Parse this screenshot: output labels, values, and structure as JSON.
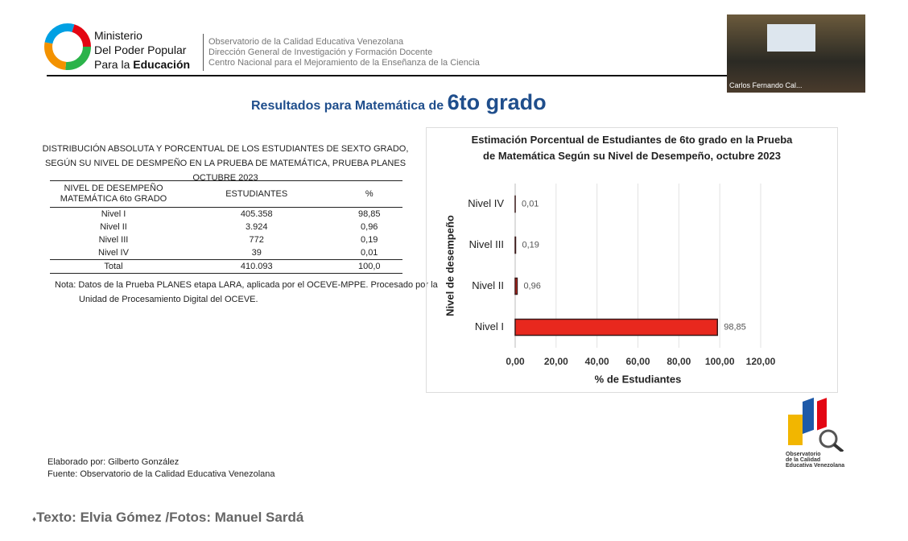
{
  "header": {
    "ministry": [
      "Ministerio",
      "Del Poder Popular",
      "Para la "
    ],
    "ministry_bold": "Educación",
    "observatory": [
      "Observatorio de la Calidad Educativa Venezolana",
      "Dirección General de Investigación y Formación Docente",
      "Centro Nacional para el Mejoramiento de la Enseñanza de la Ciencia"
    ],
    "video_caption": "Carlos Fernando Cal..."
  },
  "slide_title": {
    "text": "Resultados para Matemática de",
    "emphasis": "6to grado"
  },
  "table": {
    "title": "DISTRIBUCIÓN ABSOLUTA Y PORCENTUAL DE LOS ESTUDIANTES DE SEXTO GRADO, SEGÚN SU NIVEL DE DESMPEÑO EN LA PRUEBA DE MATEMÁTICA, PRUEBA PLANES OCTUBRE 2023",
    "header": [
      "NIVEL DE DESEMPEÑO MATEMÁTICA 6to GRADO",
      "ESTUDIANTES",
      "%"
    ],
    "rows": [
      [
        "Nivel I",
        "405.358",
        "98,85"
      ],
      [
        "Nivel II",
        "3.924",
        "0,96"
      ],
      [
        "Nivel III",
        "772",
        "0,19"
      ],
      [
        "Nivel IV",
        "39",
        "0,01"
      ],
      [
        "Total",
        "410.093",
        "100,0"
      ]
    ],
    "note": "Nota: Datos de la Prueba PLANES etapa LARA, aplicada por el OCEVE-MPPE. Procesado por la Unidad de Procesamiento Digital del OCEVE."
  },
  "chart_data": {
    "type": "hbar",
    "title": "Estimación Porcentual de Estudiantes de 6to grado en la Prueba de Matemática Según su Nivel de Desempeño, octubre 2023",
    "xlabel": "% de Estudiantes",
    "ylabel": "Nivel de desempeño",
    "categories": [
      "Nivel I",
      "Nivel II",
      "Nivel III",
      "Nivel IV"
    ],
    "values": [
      98.85,
      0.96,
      0.19,
      0.01
    ],
    "value_labels": [
      "98,85",
      "0,96",
      "0,19",
      "0,01"
    ],
    "color": "#e8281e",
    "xlim": [
      0,
      120
    ],
    "xticks": [
      {
        "value": 0,
        "label": "0,00"
      },
      {
        "value": 20,
        "label": "20,00"
      },
      {
        "value": 40,
        "label": "40,00"
      },
      {
        "value": 60,
        "label": "60,00"
      },
      {
        "value": 80,
        "label": "80,00"
      },
      {
        "value": 100,
        "label": "100,00"
      },
      {
        "value": 120,
        "label": "120,00"
      }
    ],
    "grid": true
  },
  "footer": {
    "credits": [
      "Elaborado por: Gilberto González",
      "Fuente: Observatorio de la Calidad Educativa Venezolana"
    ],
    "logo_text": [
      "Observatorio",
      "de la Calidad",
      "Educativa Venezolana"
    ],
    "caption": "Texto: Elvia Gómez /Fotos: Manuel Sardá"
  }
}
